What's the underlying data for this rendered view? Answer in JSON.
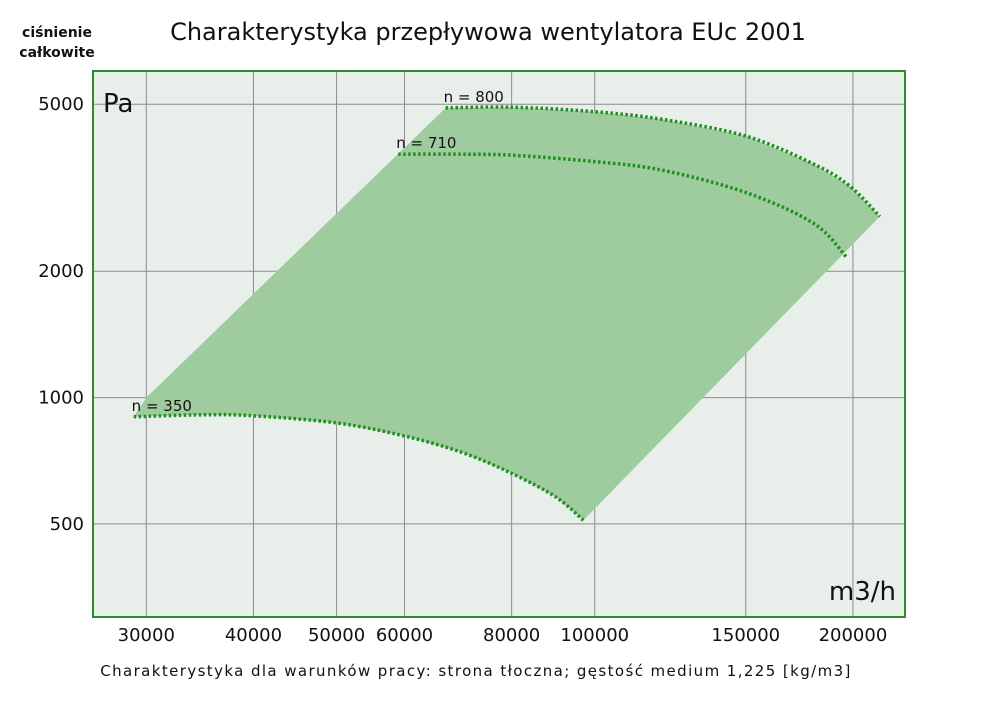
{
  "chart_data": {
    "type": "line",
    "title": "Charakterystyka przepływowa wentylatora EUc 2001",
    "ylabel": "ciśnienie całkowite",
    "ylabel_line1": "ciśnienie",
    "ylabel_line2": "całkowite",
    "y_unit": "Pa",
    "x_unit": "m3/h",
    "caption": "Charakterystyka dla warunków pracy: strona tłoczna; gęstość medium 1,225 [kg/m3]",
    "x_scale": "log",
    "y_scale": "log",
    "xlim": [
      26000,
      230000
    ],
    "ylim": [
      300,
      6000
    ],
    "x_ticks": [
      30000,
      40000,
      50000,
      60000,
      80000,
      100000,
      150000,
      200000
    ],
    "x_tick_labels": [
      "30000",
      "40000",
      "50000",
      "60000",
      "80000",
      "100000",
      "150000",
      "200000"
    ],
    "y_ticks": [
      500,
      1000,
      2000,
      5000
    ],
    "y_tick_labels": [
      "500",
      "1000",
      "2000",
      "5000"
    ],
    "grid": true,
    "series": [
      {
        "name": "n = 800",
        "x": [
          67000,
          80000,
          100000,
          120000,
          150000,
          180000,
          198000,
          215000
        ],
        "y": [
          4900,
          4920,
          4800,
          4600,
          4200,
          3600,
          3200,
          2700
        ]
      },
      {
        "name": "n = 710",
        "x": [
          59000,
          70000,
          80000,
          100000,
          120000,
          150000,
          180000,
          197000
        ],
        "y": [
          3800,
          3800,
          3780,
          3650,
          3480,
          3080,
          2600,
          2150
        ]
      },
      {
        "name": "n = 350",
        "x": [
          29000,
          35000,
          40000,
          50000,
          60000,
          70000,
          80000,
          90000,
          97000
        ],
        "y": [
          900,
          910,
          905,
          870,
          810,
          740,
          660,
          580,
          510
        ]
      }
    ],
    "operating_area": {
      "x": [
        30000,
        29000,
        35000,
        40000,
        50000,
        60000,
        70000,
        80000,
        90000,
        97000,
        215000,
        198000,
        180000,
        150000,
        120000,
        100000,
        80000,
        67000
      ],
      "y": [
        1000,
        900,
        910,
        905,
        870,
        810,
        740,
        660,
        580,
        510,
        2700,
        3200,
        3600,
        4200,
        4600,
        4800,
        4920,
        4900
      ]
    },
    "colors": {
      "background": "#e8efea",
      "frame": "#2e8b2e",
      "grid": "#8c8c8c",
      "area": "#9fcc9f",
      "curve": "#1f8f1f"
    }
  }
}
